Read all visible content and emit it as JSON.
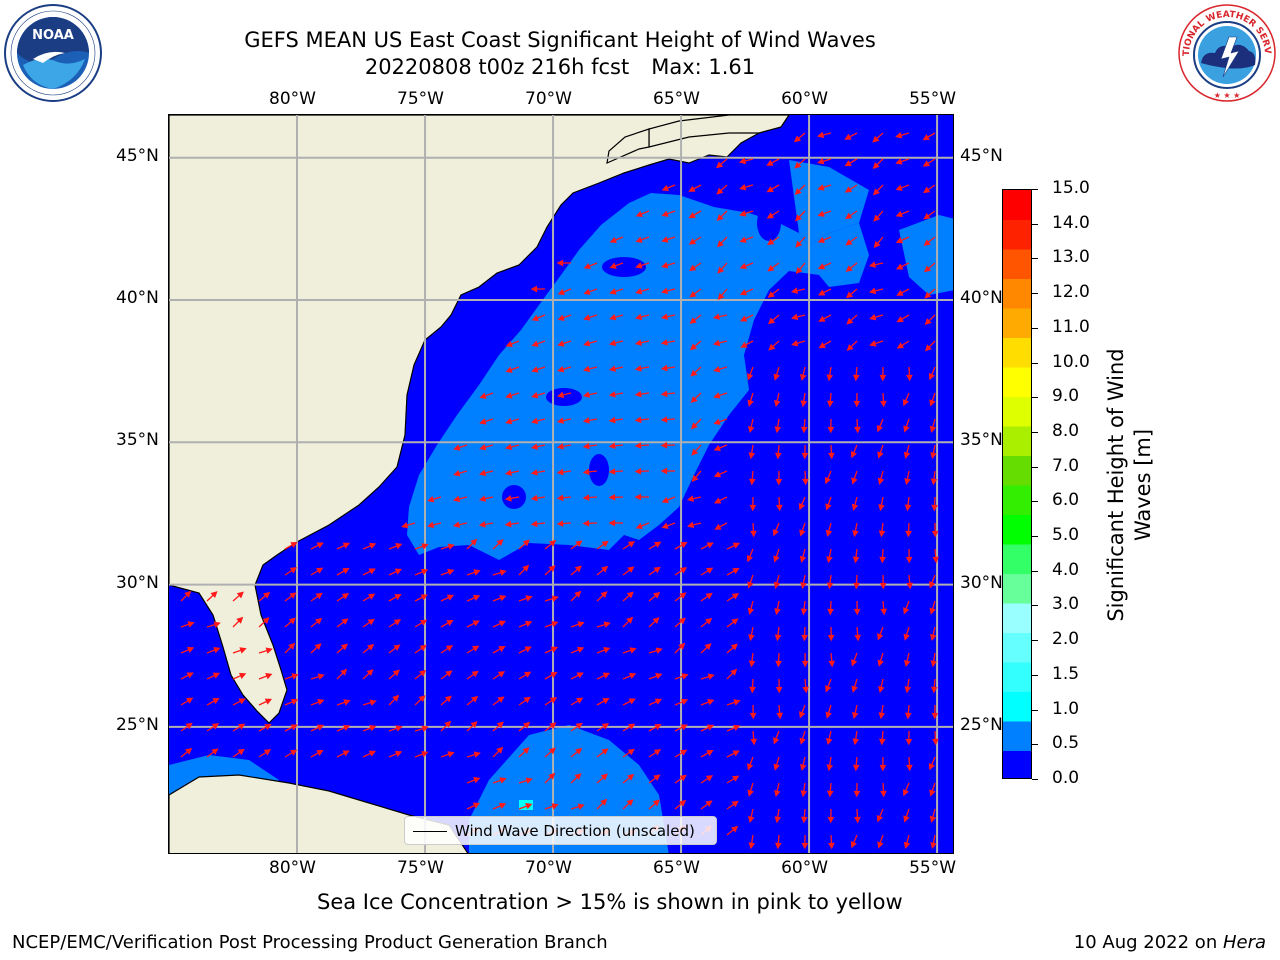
{
  "header": {
    "title_line1": "GEFS MEAN US East Coast Significant Height of Wind Waves",
    "title_date": "20220808 t00z 216h fcst",
    "title_max": "Max: 1.61",
    "left_logo": "noaa-logo",
    "right_logo": "national-weather-service-logo",
    "noaa_logo_text": "NOAA",
    "noaa_ring_text": "NATIONAL OCEANIC AND ATMOSPHERIC ADMINISTRATION · U.S. DEPARTMENT OF COMMERCE",
    "nws_ring_text": "NATIONAL WEATHER SERVICE"
  },
  "map": {
    "projection": "plate-carree",
    "lon_range": [
      -85,
      -54.3
    ],
    "lat_range": [
      20.5,
      46.5
    ],
    "lon_ticks": [
      "80°W",
      "75°W",
      "70°W",
      "65°W",
      "60°W",
      "55°W"
    ],
    "lat_ticks": [
      "45°N",
      "40°N",
      "35°N",
      "30°N",
      "25°N"
    ],
    "grid": true,
    "land_color": "#efefdc",
    "vector_color": "#ff1a1a",
    "vector_field": "wind wave direction arrows, northeastward in the south and west, southward in the open Atlantic east of 60°W"
  },
  "legend": {
    "label": "Wind Wave Direction (unscaled)",
    "placement": "bottom-center"
  },
  "colorbar": {
    "title_line1": "Significant Height of Wind",
    "title_line2": "Waves [m]",
    "ticks": [
      "15.0",
      "14.0",
      "13.0",
      "12.0",
      "11.0",
      "10.0",
      "9.0",
      "8.0",
      "7.0",
      "6.0",
      "5.0",
      "4.0",
      "3.0",
      "2.0",
      "1.5",
      "1.0",
      "0.5",
      "0.0"
    ],
    "colors_bottom_to_top": [
      "#0000ff",
      "#0080ff",
      "#00ffff",
      "#33ffff",
      "#66ffff",
      "#99ffff",
      "#66ff99",
      "#33ff66",
      "#00ff00",
      "#33ee00",
      "#66dd00",
      "#aaee00",
      "#ddff00",
      "#ffff00",
      "#ffdd00",
      "#ffaa00",
      "#ff8800",
      "#ff5500",
      "#ff2200",
      "#ff0000"
    ]
  },
  "note": "Sea Ice Concentration > 15% is shown in pink to yellow",
  "footer": {
    "left": "NCEP/EMC/Verification Post Processing Product Generation Branch",
    "right_date": "10 Aug 2022 on ",
    "right_machine": "Hera"
  }
}
